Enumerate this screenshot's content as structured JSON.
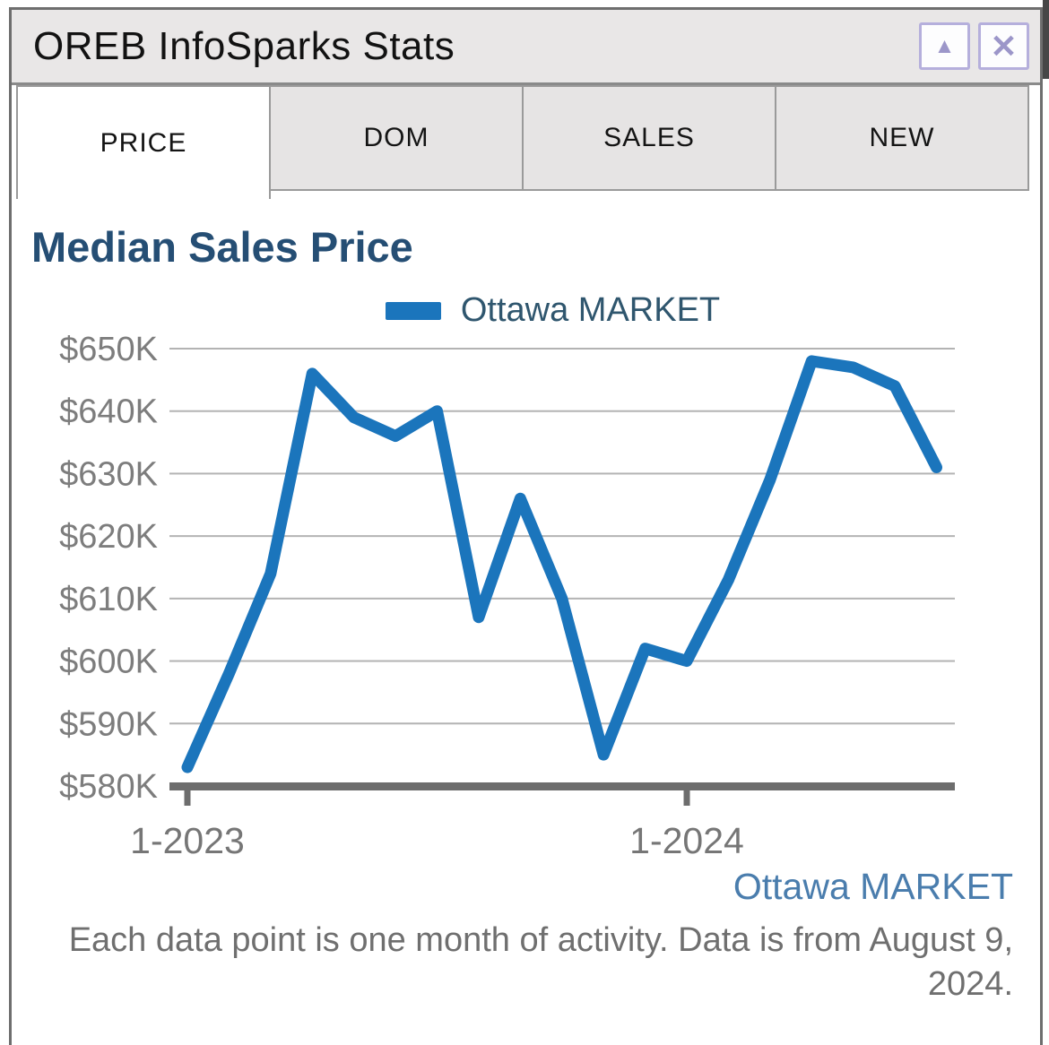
{
  "window": {
    "title": "OREB InfoSparks Stats",
    "minimize_glyph": "▲",
    "close_glyph": "✕"
  },
  "tabs": [
    {
      "label": "PRICE",
      "active": true
    },
    {
      "label": "DOM",
      "active": false
    },
    {
      "label": "SALES",
      "active": false
    },
    {
      "label": "NEW",
      "active": false
    }
  ],
  "chart": {
    "heading": "Median Sales Price",
    "legend_label": "Ottawa MARKET",
    "footer_market": "Ottawa MARKET",
    "footnote": "Each data point is one month of activity. Data is from August 9, 2024."
  },
  "chart_data": {
    "type": "line",
    "title": "Median Sales Price",
    "series_name": "Ottawa MARKET",
    "units": "CAD, thousands",
    "months": [
      "1-2023",
      "2-2023",
      "3-2023",
      "4-2023",
      "5-2023",
      "6-2023",
      "7-2023",
      "8-2023",
      "9-2023",
      "10-2023",
      "11-2023",
      "12-2023",
      "1-2024",
      "2-2024",
      "3-2024",
      "4-2024",
      "5-2024",
      "6-2024",
      "7-2024"
    ],
    "values": [
      583,
      598,
      614,
      646,
      639,
      636,
      640,
      607,
      626,
      610,
      585,
      602,
      600,
      613,
      629,
      648,
      647,
      644,
      631
    ],
    "ylim": [
      580,
      650
    ],
    "y_ticks": [
      {
        "label": "$650K",
        "value": 650
      },
      {
        "label": "$640K",
        "value": 640
      },
      {
        "label": "$630K",
        "value": 630
      },
      {
        "label": "$620K",
        "value": 620
      },
      {
        "label": "$610K",
        "value": 610
      },
      {
        "label": "$600K",
        "value": 600
      },
      {
        "label": "$590K",
        "value": 590
      },
      {
        "label": "$580K",
        "value": 580
      }
    ],
    "x_ticks": [
      {
        "label": "1-2023",
        "month": 0
      },
      {
        "label": "1-2024",
        "month": 12
      }
    ],
    "grid": true,
    "legend_position": "top-center",
    "colors": {
      "line": "#1b75bc",
      "grid": "#b3b3b3",
      "axis": "#6d6d6d",
      "y_label": "#7d7d7d",
      "x_label": "#767676"
    }
  }
}
